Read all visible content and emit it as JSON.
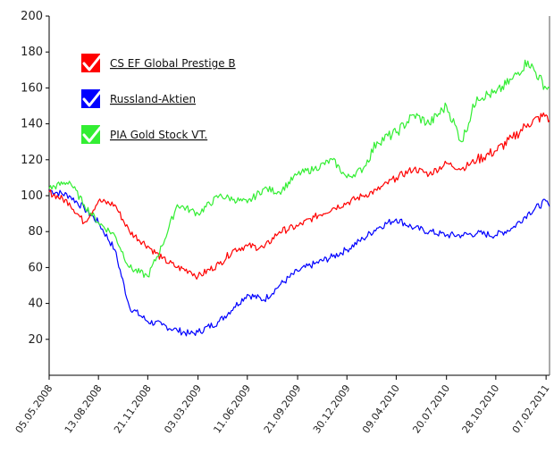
{
  "colors": {
    "background": "#ffffff",
    "axis": "#000000",
    "series": [
      "#ff0000",
      "#0000ff",
      "#33ee33"
    ]
  },
  "chart_data": {
    "type": "line",
    "title": "",
    "xlabel": "",
    "ylabel": "",
    "ylim": [
      0,
      200
    ],
    "yticks": [
      20,
      40,
      60,
      80,
      100,
      120,
      140,
      160,
      180,
      200
    ],
    "xlim": [
      "2008-05-05",
      "2011-02-14"
    ],
    "xticks": [
      "05.05.2008",
      "13.08.2008",
      "21.11.2008",
      "03.03.2009",
      "11.06.2009",
      "21.09.2009",
      "30.12.2009",
      "09.04.2010",
      "20.07.2010",
      "28.10.2010",
      "07.02.2011"
    ],
    "grid": false,
    "legend": {
      "placement": "top-left",
      "icon": "checkmark-icon"
    },
    "x": [
      "2008-05-05",
      "2008-06-15",
      "2008-07-15",
      "2008-08-13",
      "2008-09-15",
      "2008-10-15",
      "2008-11-21",
      "2008-12-20",
      "2009-01-20",
      "2009-02-15",
      "2009-03-03",
      "2009-04-15",
      "2009-05-15",
      "2009-06-11",
      "2009-07-15",
      "2009-08-15",
      "2009-09-21",
      "2009-10-25",
      "2009-12-01",
      "2009-12-30",
      "2010-02-01",
      "2010-03-01",
      "2010-04-09",
      "2010-05-15",
      "2010-06-15",
      "2010-07-20",
      "2010-08-20",
      "2010-09-20",
      "2010-10-28",
      "2010-12-01",
      "2011-01-01",
      "2011-02-07",
      "2011-02-14"
    ],
    "series": [
      {
        "name": "CS EF Global Prestige B",
        "color": "#ff0000",
        "values": [
          102,
          96,
          85,
          97,
          95,
          80,
          72,
          65,
          60,
          58,
          55,
          62,
          70,
          72,
          71,
          80,
          83,
          88,
          93,
          96,
          100,
          103,
          110,
          115,
          112,
          118,
          115,
          120,
          125,
          132,
          140,
          145,
          142
        ]
      },
      {
        "name": "Russland-Aktien",
        "color": "#0000ff",
        "values": [
          103,
          100,
          93,
          85,
          70,
          38,
          30,
          28,
          25,
          23,
          24,
          30,
          38,
          45,
          42,
          50,
          58,
          62,
          66,
          70,
          76,
          82,
          87,
          82,
          80,
          78,
          78,
          79,
          78,
          82,
          90,
          97,
          94
        ]
      },
      {
        "name": "PIA Gold Stock VT.",
        "color": "#33ee33",
        "values": [
          104,
          108,
          95,
          85,
          78,
          60,
          55,
          72,
          95,
          92,
          90,
          100,
          98,
          96,
          104,
          102,
          112,
          115,
          120,
          110,
          115,
          130,
          135,
          145,
          140,
          150,
          130,
          155,
          157,
          165,
          175,
          160,
          160
        ]
      }
    ]
  }
}
